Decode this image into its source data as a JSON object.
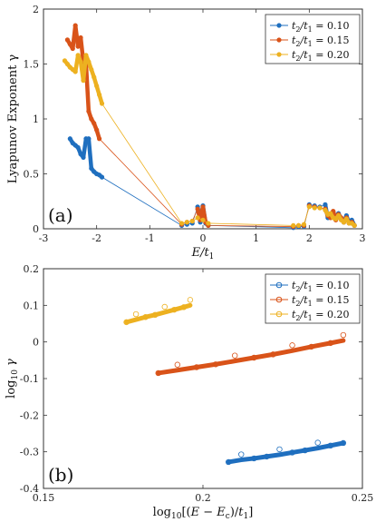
{
  "chart_data": [
    {
      "type": "line",
      "panel_label": "(a)",
      "xlabel": "E/t",
      "xlabel_sub": "1",
      "ylabel": "Lyapunov Exponent γ",
      "xlim": [
        -3,
        3
      ],
      "ylim": [
        0,
        2
      ],
      "xticks": [
        -3,
        -2,
        -1,
        0,
        1,
        2,
        3
      ],
      "yticks": [
        0,
        0.5,
        1,
        1.5,
        2
      ],
      "ytick_labels": [
        "0",
        "0.5",
        "1",
        "1.5",
        "2"
      ],
      "legend": "top-right",
      "series": [
        {
          "name": "t2/t1 = 0.10",
          "label_parts": [
            "t",
            "2",
            "/t",
            "1",
            " = 0.10"
          ],
          "color": "#1f6fbf",
          "marker": "dot",
          "x": [
            -2.5,
            -2.45,
            -2.4,
            -2.35,
            -2.3,
            -2.25,
            -2.2,
            -2.15,
            -2.1,
            -2.05,
            -2.0,
            -1.95,
            -1.9,
            -0.4,
            -0.3,
            -0.2,
            -0.1,
            -0.05,
            0.0,
            0.05,
            0.1,
            1.7,
            1.8,
            1.9,
            2.0,
            2.1,
            2.2,
            2.3,
            2.35,
            2.4,
            2.45,
            2.5,
            2.55,
            2.6,
            2.65,
            2.7,
            2.75,
            2.8,
            2.85
          ],
          "y": [
            0.82,
            0.78,
            0.76,
            0.74,
            0.68,
            0.65,
            0.82,
            0.82,
            0.55,
            0.52,
            0.5,
            0.49,
            0.47,
            0.03,
            0.04,
            0.05,
            0.2,
            0.06,
            0.21,
            0.05,
            0.03,
            0.01,
            0.02,
            0.02,
            0.22,
            0.21,
            0.2,
            0.22,
            0.1,
            0.12,
            0.15,
            0.1,
            0.14,
            0.09,
            0.06,
            0.12,
            0.05,
            0.08,
            0.03
          ]
        },
        {
          "name": "t2/t1 = 0.15",
          "label_parts": [
            "t",
            "2",
            "/t",
            "1",
            " = 0.15"
          ],
          "color": "#d95319",
          "marker": "dot",
          "x": [
            -2.55,
            -2.5,
            -2.45,
            -2.4,
            -2.35,
            -2.3,
            -2.25,
            -2.2,
            -2.15,
            -2.1,
            -2.05,
            -2.0,
            -1.95,
            -0.4,
            -0.3,
            -0.2,
            -0.1,
            -0.05,
            0.0,
            0.05,
            0.1,
            1.7,
            1.8,
            1.9,
            2.0,
            2.1,
            2.2,
            2.3,
            2.35,
            2.4,
            2.45,
            2.5,
            2.55,
            2.6,
            2.65,
            2.7,
            2.75,
            2.8,
            2.85
          ],
          "y": [
            1.72,
            1.68,
            1.64,
            1.85,
            1.66,
            1.74,
            1.52,
            1.5,
            1.07,
            1.0,
            0.96,
            0.9,
            0.82,
            0.04,
            0.06,
            0.07,
            0.18,
            0.08,
            0.2,
            0.06,
            0.03,
            0.02,
            0.03,
            0.03,
            0.21,
            0.2,
            0.19,
            0.18,
            0.12,
            0.1,
            0.16,
            0.08,
            0.13,
            0.1,
            0.06,
            0.1,
            0.05,
            0.06,
            0.03
          ]
        },
        {
          "name": "t2/t1 = 0.20",
          "label_parts": [
            "t",
            "2",
            "/t",
            "1",
            " = 0.20"
          ],
          "color": "#edb120",
          "marker": "dot",
          "x": [
            -2.6,
            -2.55,
            -2.5,
            -2.45,
            -2.4,
            -2.35,
            -2.3,
            -2.25,
            -2.2,
            -2.15,
            -2.1,
            -2.05,
            -2.0,
            -1.95,
            -1.9,
            -0.4,
            -0.3,
            -0.2,
            -0.1,
            0.0,
            0.1,
            1.7,
            1.8,
            1.9,
            2.0,
            2.1,
            2.2,
            2.3,
            2.35,
            2.4,
            2.45,
            2.5,
            2.55,
            2.6,
            2.65,
            2.7,
            2.75,
            2.8,
            2.85
          ],
          "y": [
            1.53,
            1.5,
            1.47,
            1.45,
            1.43,
            1.58,
            1.52,
            1.35,
            1.58,
            1.52,
            1.45,
            1.38,
            1.3,
            1.22,
            1.14,
            0.05,
            0.06,
            0.07,
            0.1,
            0.08,
            0.05,
            0.03,
            0.03,
            0.04,
            0.2,
            0.19,
            0.19,
            0.17,
            0.13,
            0.14,
            0.1,
            0.09,
            0.12,
            0.08,
            0.06,
            0.09,
            0.05,
            0.05,
            0.03
          ]
        }
      ]
    },
    {
      "type": "scatter",
      "panel_label": "(b)",
      "xlabel": "log",
      "xlabel_sub": "10",
      "xlabel_rest_parts": [
        "[(",
        "E",
        " − ",
        "E",
        "c",
        ")/",
        "t",
        "1",
        "]"
      ],
      "ylabel": "log",
      "ylabel_sub": "10",
      "ylabel_var": "γ",
      "xlim": [
        0.15,
        0.25
      ],
      "ylim": [
        -0.4,
        0.2
      ],
      "xticks": [
        0.15,
        0.2,
        0.25
      ],
      "xtick_labels": [
        "0.15",
        "0.2",
        "0.25"
      ],
      "yticks": [
        -0.4,
        -0.3,
        -0.2,
        -0.1,
        0,
        0.1,
        0.2
      ],
      "ytick_labels": [
        "-0.4",
        "-0.3",
        "-0.2",
        "-0.1",
        "0",
        "0.1",
        "0.2"
      ],
      "legend": "top-right",
      "series": [
        {
          "name": "t2/t1 = 0.10",
          "label_parts": [
            "t",
            "2",
            "/t",
            "1",
            " = 0.10"
          ],
          "color": "#1f6fbf",
          "marker": "circle",
          "x": [
            0.208,
            0.212,
            0.216,
            0.22,
            0.224,
            0.228,
            0.232,
            0.236,
            0.24,
            0.244
          ],
          "y": [
            -0.328,
            -0.322,
            -0.318,
            -0.313,
            -0.308,
            -0.302,
            -0.296,
            -0.29,
            -0.283,
            -0.276
          ]
        },
        {
          "name": "t2/t1 = 0.15",
          "label_parts": [
            "t",
            "2",
            "/t",
            "1",
            " = 0.15"
          ],
          "color": "#d95319",
          "marker": "circle",
          "x": [
            0.186,
            0.192,
            0.198,
            0.204,
            0.21,
            0.216,
            0.222,
            0.228,
            0.234,
            0.24,
            0.244
          ],
          "y": [
            -0.085,
            -0.077,
            -0.069,
            -0.061,
            -0.052,
            -0.043,
            -0.034,
            -0.024,
            -0.013,
            -0.003,
            0.004
          ]
        },
        {
          "name": "t2/t1 = 0.20",
          "label_parts": [
            "t",
            "2",
            "/t",
            "1",
            " = 0.20"
          ],
          "color": "#edb120",
          "marker": "circle",
          "x": [
            0.176,
            0.179,
            0.182,
            0.185,
            0.188,
            0.191,
            0.194,
            0.196
          ],
          "y": [
            0.054,
            0.061,
            0.068,
            0.074,
            0.081,
            0.088,
            0.095,
            0.1
          ]
        }
      ]
    }
  ]
}
